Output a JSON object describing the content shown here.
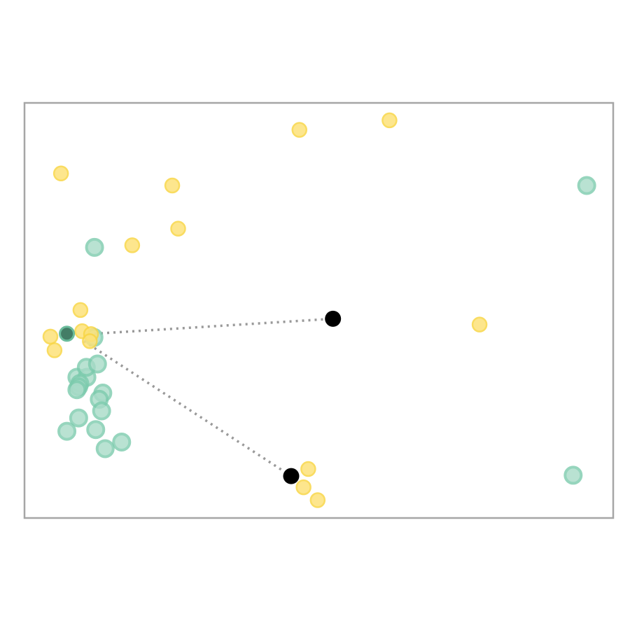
{
  "chart_data": {
    "type": "scatter",
    "title": "",
    "xlabel": "",
    "ylabel": "",
    "grid": false,
    "axes_ticks": false,
    "xlim": [
      0,
      100
    ],
    "ylim": [
      0,
      100
    ],
    "colors": {
      "frame": "#a6a6a6",
      "yellow_fill": "#fde27a",
      "yellow_stroke": "#f8d646",
      "green_fill": "#a8dbc8",
      "green_stroke": "#7ccbad",
      "highlight_fill": "#2f6f56",
      "highlight_stroke": "#5cb592",
      "centroid": "#000000",
      "connector": "#999999"
    },
    "series": [
      {
        "group": "yellow",
        "points": [
          [
            6.2,
            83.0
          ],
          [
            46.7,
            93.5
          ],
          [
            62.0,
            95.8
          ],
          [
            25.1,
            80.1
          ],
          [
            26.1,
            69.7
          ],
          [
            18.3,
            65.7
          ],
          [
            9.5,
            50.1
          ],
          [
            4.4,
            43.7
          ],
          [
            5.1,
            40.4
          ],
          [
            9.8,
            45.0
          ],
          [
            11.3,
            44.3
          ],
          [
            11.1,
            42.6
          ],
          [
            77.3,
            46.6
          ],
          [
            48.2,
            11.8
          ],
          [
            47.4,
            7.4
          ],
          [
            49.8,
            4.3
          ]
        ]
      },
      {
        "group": "green",
        "points": [
          [
            95.5,
            80.1
          ],
          [
            11.9,
            65.2
          ],
          [
            11.8,
            43.5
          ],
          [
            8.9,
            33.9
          ],
          [
            10.6,
            33.9
          ],
          [
            9.4,
            32.4
          ],
          [
            10.5,
            36.3
          ],
          [
            12.4,
            37.1
          ],
          [
            9.2,
            31.6
          ],
          [
            8.9,
            30.9
          ],
          [
            13.3,
            30.1
          ],
          [
            12.7,
            28.6
          ],
          [
            13.1,
            25.8
          ],
          [
            9.2,
            24.1
          ],
          [
            12.1,
            21.3
          ],
          [
            7.2,
            20.9
          ],
          [
            16.5,
            18.3
          ],
          [
            13.7,
            16.7
          ],
          [
            93.2,
            10.3
          ]
        ]
      },
      {
        "group": "highlight",
        "points": [
          [
            7.2,
            44.4
          ]
        ]
      },
      {
        "group": "centroid",
        "points": [
          [
            52.4,
            48.0
          ],
          [
            45.3,
            10.1
          ]
        ]
      }
    ],
    "connectors": [
      {
        "from": [
          11.9,
          44.4
        ],
        "to": [
          52.4,
          48.0
        ]
      },
      {
        "from": [
          10.1,
          42.6
        ],
        "to": [
          45.3,
          10.1
        ]
      }
    ]
  }
}
